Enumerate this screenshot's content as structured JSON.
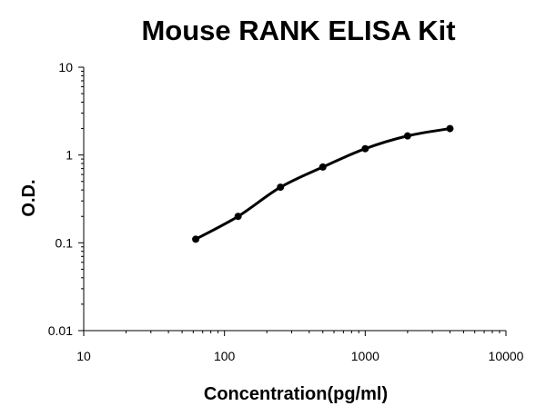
{
  "chart_data": {
    "type": "line",
    "title": "Mouse RANK ELISA Kit",
    "xlabel": "Concentration(pg/ml)",
    "ylabel": "O.D.",
    "x_scale": "log",
    "y_scale": "log",
    "xlim": [
      10,
      10000
    ],
    "ylim": [
      0.01,
      10
    ],
    "x_ticks": [
      "10",
      "100",
      "1000",
      "10000"
    ],
    "y_ticks": [
      "0.01",
      "0.1",
      "1",
      "10"
    ],
    "grid": false,
    "legend": "none",
    "series": [
      {
        "x": [
          62.5,
          125,
          250,
          500,
          1000,
          2000,
          4000
        ],
        "y": [
          0.11,
          0.2,
          0.43,
          0.73,
          1.18,
          1.65,
          2.0
        ],
        "color": "#000000"
      }
    ]
  }
}
